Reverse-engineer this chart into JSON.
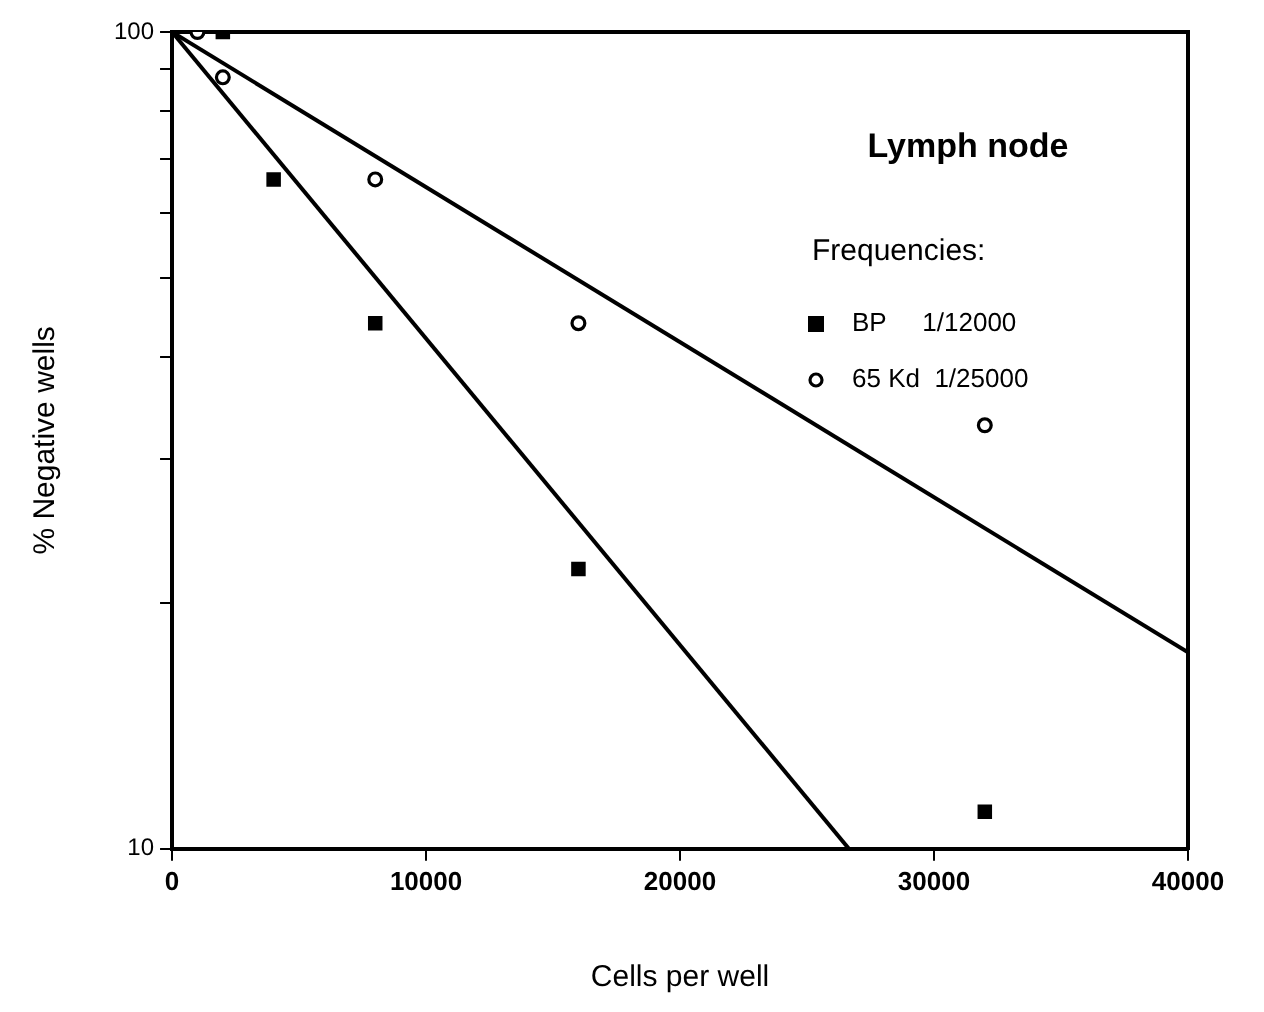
{
  "chart_data": {
    "type": "scatter",
    "title": "Lymph node",
    "xlabel": "Cells per well",
    "ylabel": "% Negative wells",
    "legend_title": "Frequencies:",
    "legend": "top right",
    "log": "y",
    "grid": false,
    "xlim": [
      0,
      40000
    ],
    "xticks": [
      0,
      10000,
      20000,
      30000,
      40000
    ],
    "ylim": [
      10,
      100
    ],
    "yticks": [
      10,
      {
        "value": 20,
        "label": null
      },
      {
        "value": 30,
        "label": null
      },
      {
        "value": 40,
        "label": null
      },
      {
        "value": 50,
        "label": null
      },
      {
        "value": 60,
        "label": null
      },
      {
        "value": 70,
        "label": null
      },
      {
        "value": 80,
        "label": null
      },
      {
        "value": 90,
        "label": null
      },
      100
    ],
    "series": [
      {
        "name": "BP     1/12000",
        "color": "#000000",
        "marker": "square",
        "x": [
          2000,
          4000,
          8000,
          16000,
          32000
        ],
        "values": [
          100,
          66,
          44,
          22,
          11.1
        ]
      },
      {
        "name": "65 Kd  1/25000",
        "color": "#000000",
        "marker": "circle",
        "x": [
          1000,
          2000,
          8000,
          16000,
          32000
        ],
        "values": [
          100,
          88,
          66,
          44,
          33
        ]
      },
      {
        "type": "line",
        "color": "#000000",
        "marker": "none",
        "x": [
          0,
          26650
        ],
        "values": [
          100,
          10
        ]
      },
      {
        "type": "line",
        "color": "#000000",
        "marker": "none",
        "x": [
          0,
          40000
        ],
        "values": [
          100,
          17.4
        ]
      }
    ]
  }
}
